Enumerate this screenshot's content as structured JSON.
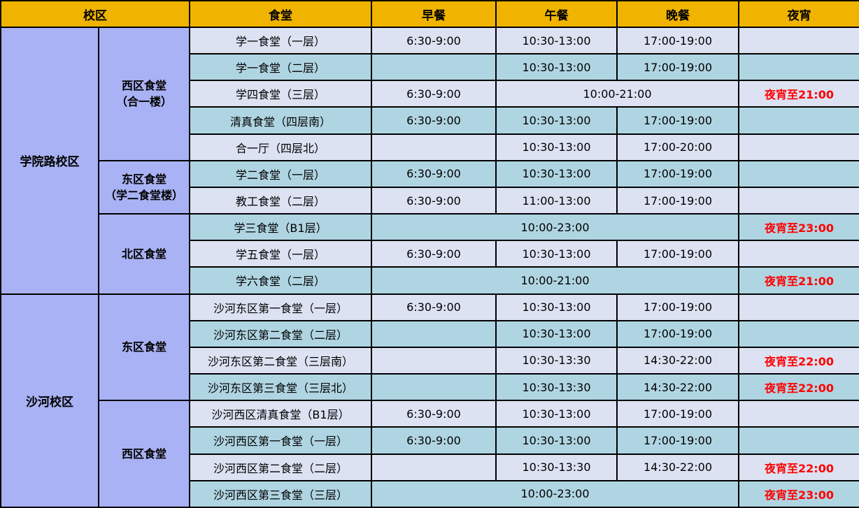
{
  "table": {
    "headers": [
      {
        "label": "校区"
      },
      {
        "label": "食堂"
      },
      {
        "label": "早餐"
      },
      {
        "label": "午餐"
      },
      {
        "label": "晚餐"
      },
      {
        "label": "夜宵"
      }
    ],
    "campuses": [
      {
        "name": "学院路校区",
        "areas": [
          {
            "name": "西区食堂\n（合一楼）",
            "halls": [
              {
                "name": "学一食堂（一层）",
                "cells": [
                  {
                    "text": "6:30-9:00"
                  },
                  {
                    "text": "10:30-13:00"
                  },
                  {
                    "text": "17:00-19:00"
                  },
                  {
                    "text": ""
                  }
                ]
              },
              {
                "name": "学一食堂（二层）",
                "cells": [
                  {
                    "text": ""
                  },
                  {
                    "text": "10:30-13:00"
                  },
                  {
                    "text": "17:00-19:00"
                  },
                  {
                    "text": ""
                  }
                ]
              },
              {
                "name": "学四食堂（三层）",
                "cells": [
                  {
                    "text": "6:30-9:00"
                  },
                  {
                    "text": "10:00-21:00",
                    "span": 2
                  },
                  {
                    "text": "夜宵至21:00",
                    "red": true
                  }
                ]
              },
              {
                "name": "清真食堂（四层南）",
                "cells": [
                  {
                    "text": "6:30-9:00"
                  },
                  {
                    "text": "10:30-13:00"
                  },
                  {
                    "text": "17:00-19:00"
                  },
                  {
                    "text": ""
                  }
                ]
              },
              {
                "name": "合一厅（四层北）",
                "cells": [
                  {
                    "text": ""
                  },
                  {
                    "text": "10:30-13:00"
                  },
                  {
                    "text": "17:00-20:00"
                  },
                  {
                    "text": ""
                  }
                ]
              }
            ]
          },
          {
            "name": "东区食堂\n（学二食堂楼）",
            "halls": [
              {
                "name": "学二食堂（一层）",
                "cells": [
                  {
                    "text": "6:30-9:00"
                  },
                  {
                    "text": "10:30-13:00"
                  },
                  {
                    "text": "17:00-19:00"
                  },
                  {
                    "text": ""
                  }
                ]
              },
              {
                "name": "教工食堂（二层）",
                "cells": [
                  {
                    "text": "6:30-9:00"
                  },
                  {
                    "text": "11:00-13:00"
                  },
                  {
                    "text": "17:00-19:00"
                  },
                  {
                    "text": ""
                  }
                ]
              }
            ]
          },
          {
            "name": "北区食堂",
            "halls": [
              {
                "name": "学三食堂（B1层）",
                "cells": [
                  {
                    "text": "10:00-23:00",
                    "span": 3
                  },
                  {
                    "text": "夜宵至23:00",
                    "red": true
                  }
                ]
              },
              {
                "name": "学五食堂（一层）",
                "cells": [
                  {
                    "text": "6:30-9:00"
                  },
                  {
                    "text": "10:30-13:00"
                  },
                  {
                    "text": "17:00-19:00"
                  },
                  {
                    "text": ""
                  }
                ]
              },
              {
                "name": "学六食堂（二层）",
                "cells": [
                  {
                    "text": "10:00-21:00",
                    "span": 3
                  },
                  {
                    "text": "夜宵至21:00",
                    "red": true
                  }
                ]
              }
            ]
          }
        ]
      },
      {
        "name": "沙河校区",
        "areas": [
          {
            "name": "东区食堂",
            "halls": [
              {
                "name": "沙河东区第一食堂（一层）",
                "cells": [
                  {
                    "text": "6:30-9:00"
                  },
                  {
                    "text": "10:30-13:00"
                  },
                  {
                    "text": "17:00-19:00"
                  },
                  {
                    "text": ""
                  }
                ]
              },
              {
                "name": "沙河东区第二食堂（二层）",
                "cells": [
                  {
                    "text": ""
                  },
                  {
                    "text": "10:30-13:00"
                  },
                  {
                    "text": "17:00-19:00"
                  },
                  {
                    "text": ""
                  }
                ]
              },
              {
                "name": "沙河东区第二食堂（三层南）",
                "cells": [
                  {
                    "text": ""
                  },
                  {
                    "text": "10:30-13:30"
                  },
                  {
                    "text": "14:30-22:00"
                  },
                  {
                    "text": "夜宵至22:00",
                    "red": true
                  }
                ]
              },
              {
                "name": "沙河东区第三食堂（三层北）",
                "cells": [
                  {
                    "text": ""
                  },
                  {
                    "text": "10:30-13:30"
                  },
                  {
                    "text": "14:30-22:00"
                  },
                  {
                    "text": "夜宵至22:00",
                    "red": true
                  }
                ]
              }
            ]
          },
          {
            "name": "西区食堂",
            "halls": [
              {
                "name": "沙河西区清真食堂（B1层）",
                "cells": [
                  {
                    "text": "6:30-9:00"
                  },
                  {
                    "text": "10:30-13:00"
                  },
                  {
                    "text": "17:00-19:00"
                  },
                  {
                    "text": ""
                  }
                ]
              },
              {
                "name": "沙河西区第一食堂（一层）",
                "cells": [
                  {
                    "text": "6:30-9:00"
                  },
                  {
                    "text": "10:30-13:00"
                  },
                  {
                    "text": "17:00-19:00"
                  },
                  {
                    "text": ""
                  }
                ]
              },
              {
                "name": "沙河西区第二食堂（二层）",
                "cells": [
                  {
                    "text": ""
                  },
                  {
                    "text": "10:30-13:30"
                  },
                  {
                    "text": "14:30-22:00"
                  },
                  {
                    "text": "夜宵至22:00",
                    "red": true
                  }
                ]
              },
              {
                "name": "沙河西区第三食堂（三层）",
                "cells": [
                  {
                    "text": "10:00-23:00",
                    "span": 3
                  },
                  {
                    "text": "夜宵至23:00",
                    "red": true
                  }
                ]
              }
            ]
          }
        ]
      }
    ]
  },
  "colors": {
    "header_bg": "#F0B400",
    "campus_bg": "#A9B2F4",
    "row_odd_bg": "#DCE2F2",
    "row_even_bg": "#B0D5E2",
    "late_night_text": "#FF0000",
    "border": "#000000"
  }
}
